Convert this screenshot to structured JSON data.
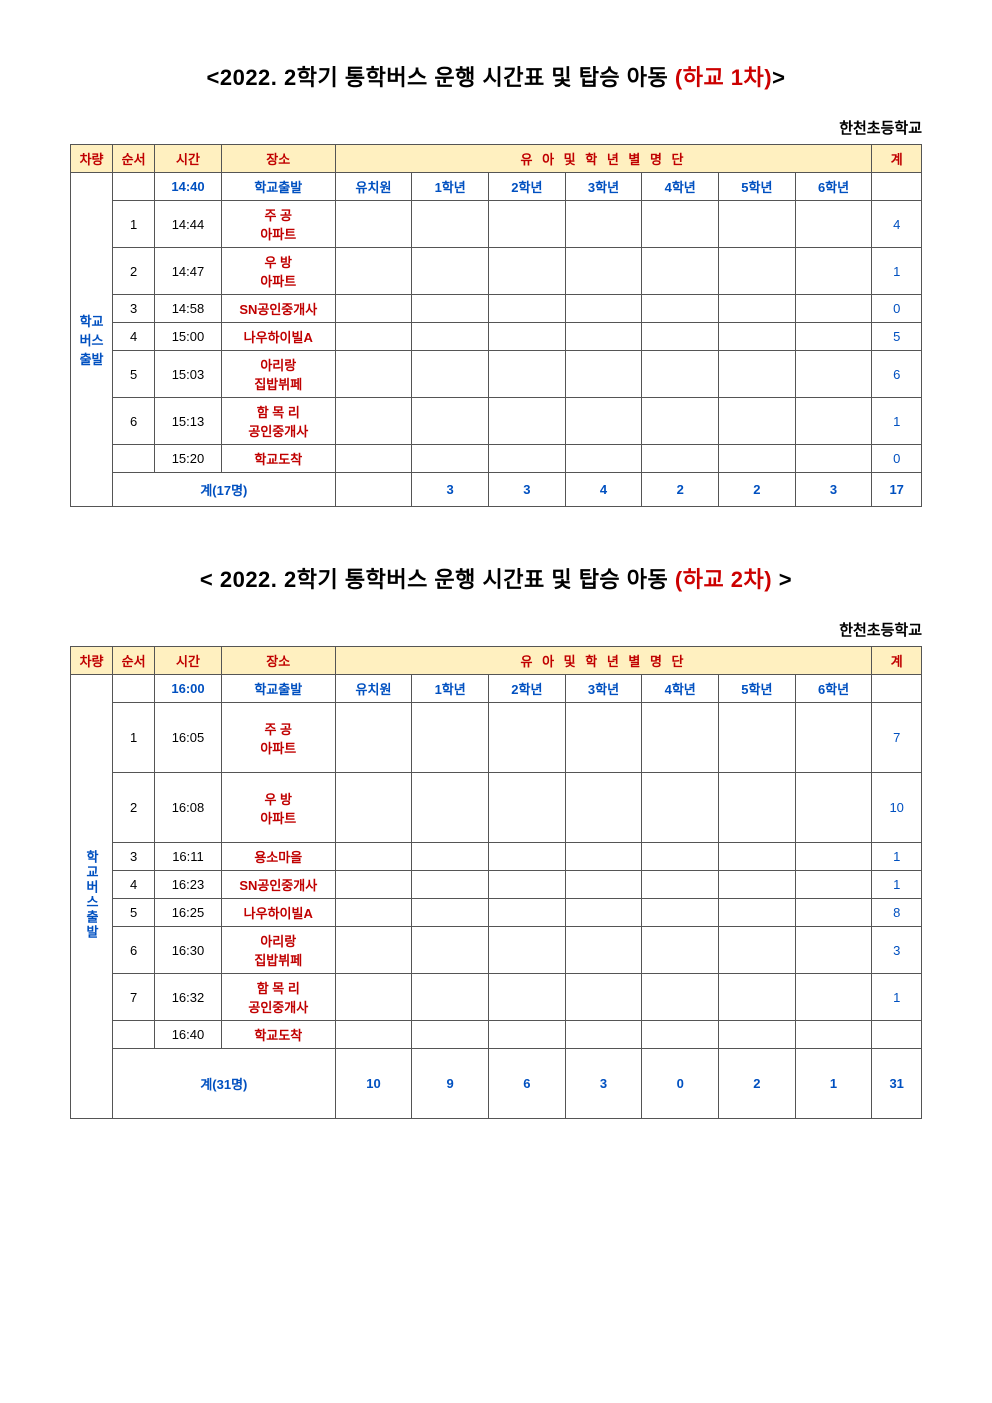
{
  "school_name": "한천초등학교",
  "tables": [
    {
      "title_prefix": "<2022. 2학기 통학버스 운행 시간표 및 탑승 아동 ",
      "title_red": "(하교 1차)",
      "title_suffix": ">",
      "vehicle_label": "학교버스출발",
      "vehicle_label_mode": "horizontal-narrow",
      "header": [
        "차량",
        "순서",
        "시간",
        "장소",
        "유 아  및 학 년 별 명 단",
        "계"
      ],
      "grade_headers": [
        "유치원",
        "1학년",
        "2학년",
        "3학년",
        "4학년",
        "5학년",
        "6학년"
      ],
      "rows": [
        {
          "order": "",
          "time": "14:40",
          "time_color": "blue",
          "place": "학교출발",
          "cells": [
            "",
            "",
            "",
            "",
            "",
            "",
            ""
          ],
          "total": "",
          "is_grade_header": true
        },
        {
          "order": "1",
          "time": "14:44",
          "place": "주 공\n아파트",
          "cells": [
            "",
            "",
            "",
            "",
            "",
            "",
            ""
          ],
          "total": "4",
          "height": "tall"
        },
        {
          "order": "2",
          "time": "14:47",
          "place": "우 방\n아파트",
          "cells": [
            "",
            "",
            "",
            "",
            "",
            "",
            ""
          ],
          "total": "1",
          "height": "tall"
        },
        {
          "order": "3",
          "time": "14:58",
          "place": "SN공인중개사",
          "cells": [
            "",
            "",
            "",
            "",
            "",
            "",
            ""
          ],
          "total": "0"
        },
        {
          "order": "4",
          "time": "15:00",
          "place": "나우하이빌A",
          "cells": [
            "",
            "",
            "",
            "",
            "",
            "",
            ""
          ],
          "total": "5"
        },
        {
          "order": "5",
          "time": "15:03",
          "place": "아리랑\n집밥뷔페",
          "cells": [
            "",
            "",
            "",
            "",
            "",
            "",
            ""
          ],
          "total": "6",
          "height": "tall"
        },
        {
          "order": "6",
          "time": "15:13",
          "place": "함 목 리\n공인중개사",
          "cells": [
            "",
            "",
            "",
            "",
            "",
            "",
            ""
          ],
          "total": "1",
          "height": "tall"
        },
        {
          "order": "",
          "time": "15:20",
          "place": "학교도착",
          "cells": [
            "",
            "",
            "",
            "",
            "",
            "",
            ""
          ],
          "total": "0"
        }
      ],
      "footer_label": "계(17명)",
      "footer_cells": [
        "",
        "3",
        "3",
        "4",
        "2",
        "2",
        "3"
      ],
      "footer_total": "17"
    },
    {
      "title_prefix": "< 2022. 2학기 통학버스 운행 시간표 및 탑승 아동 ",
      "title_red": "(하교 2차)",
      "title_suffix": " >",
      "vehicle_label": "학교버스출발",
      "vehicle_label_mode": "vertical",
      "header": [
        "차량",
        "순서",
        "시간",
        "장소",
        "유 아  및 학 년 별 명 단",
        "계"
      ],
      "grade_headers": [
        "유치원",
        "1학년",
        "2학년",
        "3학년",
        "4학년",
        "5학년",
        "6학년"
      ],
      "rows": [
        {
          "order": "",
          "time": "16:00",
          "time_color": "blue",
          "place": "학교출발",
          "cells": [
            "",
            "",
            "",
            "",
            "",
            "",
            ""
          ],
          "total": "",
          "is_grade_header": true
        },
        {
          "order": "1",
          "time": "16:05",
          "place": "주 공\n아파트",
          "cells": [
            "",
            "",
            "",
            "",
            "",
            "",
            ""
          ],
          "total": "7",
          "height": "taller"
        },
        {
          "order": "2",
          "time": "16:08",
          "place": "우 방\n아파트",
          "cells": [
            "",
            "",
            "",
            "",
            "",
            "",
            ""
          ],
          "total": "10",
          "height": "taller"
        },
        {
          "order": "3",
          "time": "16:11",
          "place": "용소마을",
          "cells": [
            "",
            "",
            "",
            "",
            "",
            "",
            ""
          ],
          "total": "1"
        },
        {
          "order": "4",
          "time": "16:23",
          "place": "SN공인중개사",
          "cells": [
            "",
            "",
            "",
            "",
            "",
            "",
            ""
          ],
          "total": "1"
        },
        {
          "order": "5",
          "time": "16:25",
          "place": "나우하이빌A",
          "cells": [
            "",
            "",
            "",
            "",
            "",
            "",
            ""
          ],
          "total": "8"
        },
        {
          "order": "6",
          "time": "16:30",
          "place": "아리랑\n집밥뷔페",
          "cells": [
            "",
            "",
            "",
            "",
            "",
            "",
            ""
          ],
          "total": "3",
          "height": "tall"
        },
        {
          "order": "7",
          "time": "16:32",
          "place": "함 목 리\n공인중개사",
          "cells": [
            "",
            "",
            "",
            "",
            "",
            "",
            ""
          ],
          "total": "1",
          "height": "tall"
        },
        {
          "order": "",
          "time": "16:40",
          "place": "학교도착",
          "cells": [
            "",
            "",
            "",
            "",
            "",
            "",
            ""
          ],
          "total": ""
        }
      ],
      "footer_label": "계(31명)",
      "footer_cells": [
        "10",
        "9",
        "6",
        "3",
        "0",
        "2",
        "1"
      ],
      "footer_total": "31",
      "footer_height": "taller"
    }
  ]
}
